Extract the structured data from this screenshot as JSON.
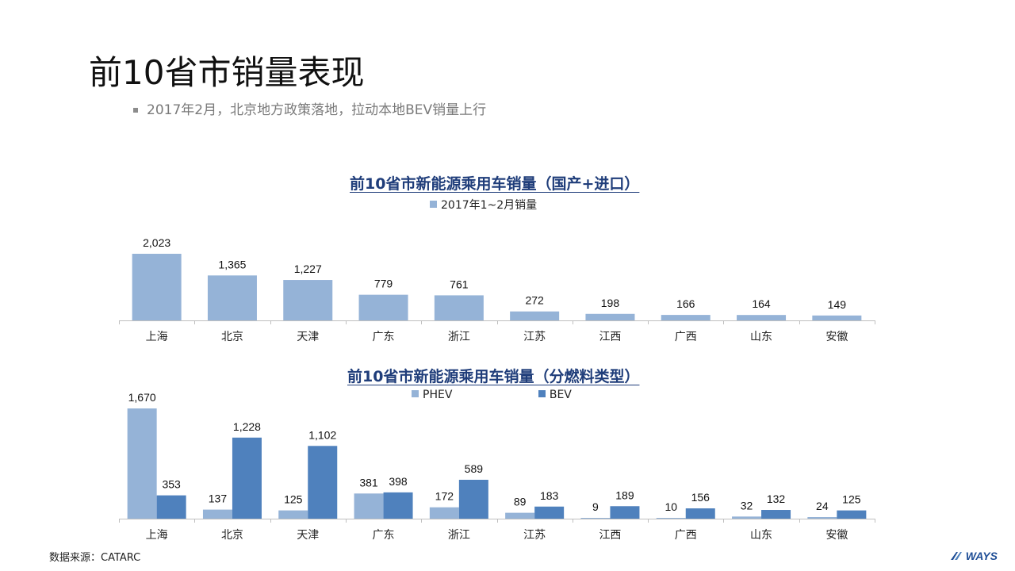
{
  "page": {
    "title": "前10省市销量表现",
    "bullet": "2017年2月，北京地方政策落地，拉动本地BEV销量上行",
    "source": "数据来源：CATARC",
    "logo_text": "WAYS"
  },
  "colors": {
    "light_blue": "#95b3d7",
    "dark_blue": "#4f81bd",
    "title_blue": "#1f3d7a"
  },
  "chart_data": [
    {
      "type": "bar",
      "title": "前10省市新能源乘用车销量（国产+进口）",
      "categories": [
        "上海",
        "北京",
        "天津",
        "广东",
        "浙江",
        "江苏",
        "江西",
        "广西",
        "山东",
        "安徽"
      ],
      "series": [
        {
          "name": "2017年1~2月销量",
          "values": [
            2023,
            1365,
            1227,
            779,
            761,
            272,
            198,
            166,
            164,
            149
          ],
          "color": "#95b3d7"
        }
      ],
      "legend": "top-center",
      "grid": false
    },
    {
      "type": "bar",
      "title": "前10省市新能源乘用车销量（分燃料类型）",
      "categories": [
        "上海",
        "北京",
        "天津",
        "广东",
        "浙江",
        "江苏",
        "江西",
        "广西",
        "山东",
        "安徽"
      ],
      "series": [
        {
          "name": "PHEV",
          "values": [
            1670,
            137,
            125,
            381,
            172,
            89,
            9,
            10,
            32,
            24
          ],
          "color": "#95b3d7"
        },
        {
          "name": "BEV",
          "values": [
            353,
            1228,
            1102,
            398,
            589,
            183,
            189,
            156,
            132,
            125
          ],
          "color": "#4f81bd"
        }
      ],
      "legend": "top-center",
      "grid": false
    }
  ]
}
